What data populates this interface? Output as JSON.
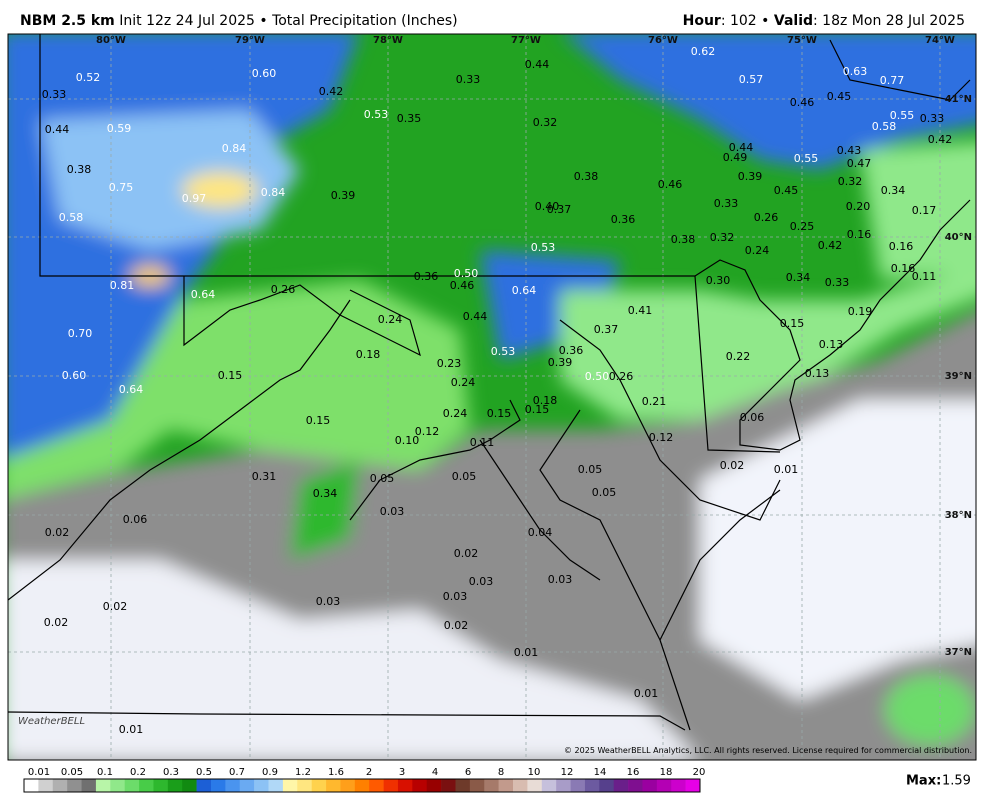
{
  "header": {
    "model": "NBM 2.5 km",
    "init": "Init 12z 24 Jul 2025 • Total Precipitation (Inches)",
    "hour_label": "Hour",
    "hour": ": 102 • ",
    "valid_label": "Valid",
    "valid": ": 18z Mon 28 Jul 2025"
  },
  "map": {
    "longitude_labels": [
      "80°W",
      "79°W",
      "78°W",
      "77°W",
      "76°W",
      "75°W",
      "74°W"
    ],
    "latitude_labels": [
      "41°N",
      "40°N",
      "39°N",
      "38°N",
      "37°N"
    ],
    "point_values": [
      "0.52",
      "0.33",
      "0.44",
      "0.59",
      "0.60",
      "0.42",
      "0.53",
      "0.35",
      "0.33",
      "0.44",
      "0.32",
      "0.62",
      "0.57",
      "0.63",
      "0.77",
      "0.46",
      "0.45",
      "0.58",
      "0.55",
      "0.33",
      "0.42",
      "0.84",
      "0.38",
      "0.75",
      "0.97",
      "0.84",
      "0.39",
      "0.44",
      "0.49",
      "0.55",
      "0.43",
      "0.47",
      "0.38",
      "0.46",
      "0.39",
      "0.32",
      "0.34",
      "0.58",
      "0.40",
      "0.37",
      "0.36",
      "0.33",
      "0.45",
      "0.26",
      "0.20",
      "0.17",
      "0.25",
      "0.16",
      "0.53",
      "0.38",
      "0.32",
      "0.24",
      "0.42",
      "0.16",
      "0.81",
      "0.64",
      "0.26",
      "0.36",
      "0.50",
      "0.46",
      "0.64",
      "0.30",
      "0.34",
      "0.33",
      "0.16",
      "0.11",
      "0.41",
      "0.24",
      "0.44",
      "0.37",
      "0.15",
      "0.19",
      "0.70",
      "0.18",
      "0.23",
      "0.53",
      "0.36",
      "0.39",
      "0.22",
      "0.13",
      "0.15",
      "0.60",
      "0.64",
      "0.24",
      "0.50",
      "0.26",
      "0.13",
      "0.18",
      "0.21",
      "0.24",
      "0.15",
      "0.15",
      "0.06",
      "0.15",
      "0.12",
      "0.10",
      "0.11",
      "0.12",
      "0.02",
      "0.01",
      "0.05",
      "0.31",
      "0.34",
      "0.05",
      "0.05",
      "0.05",
      "0.03",
      "0.06",
      "0.02",
      "0.04",
      "0.02",
      "0.03",
      "0.03",
      "0.03",
      "0.03",
      "0.02",
      "0.02",
      "0.02",
      "0.01",
      "0.01",
      "0.01"
    ],
    "logo": "WeatherBELL",
    "copyright": "© 2025 WeatherBELL Analytics, LLC. All rights reserved. License required for commercial distribution."
  },
  "colorbar": {
    "ticks": [
      "0.01",
      "0.05",
      "0.1",
      "0.2",
      "0.3",
      "0.5",
      "0.7",
      "0.9",
      "1.2",
      "1.6",
      "2",
      "3",
      "4",
      "6",
      "8",
      "10",
      "12",
      "14",
      "16",
      "18",
      "20"
    ],
    "colors": [
      "#ffffff",
      "#d0d0d0",
      "#b0b0b0",
      "#909090",
      "#707070",
      "#b8f5a8",
      "#90e88a",
      "#6cdc6a",
      "#48cc48",
      "#2eb82e",
      "#1a9e1a",
      "#118a11",
      "#1c5fd6",
      "#2a7ae8",
      "#4a94ef",
      "#6aaaf2",
      "#8cc2f5",
      "#b0d8f7",
      "#fff6a8",
      "#ffe680",
      "#ffd24d",
      "#ffb82e",
      "#ff9f1a",
      "#ff8000",
      "#ff5a00",
      "#f03000",
      "#d81000",
      "#b80000",
      "#980000",
      "#7a1010",
      "#6e3a2a",
      "#8a5a48",
      "#a67a6a",
      "#c29a8c",
      "#d8bcb0",
      "#e8dcd6",
      "#c6c0dc",
      "#a89cc8",
      "#8a7ab4",
      "#6c5aa0",
      "#56408c",
      "#6a1f8a",
      "#7f0f90",
      "#9a00a0",
      "#b400b4",
      "#cc00cc",
      "#e600e6"
    ],
    "max_label": "Max:",
    "max_value": "1.59"
  }
}
